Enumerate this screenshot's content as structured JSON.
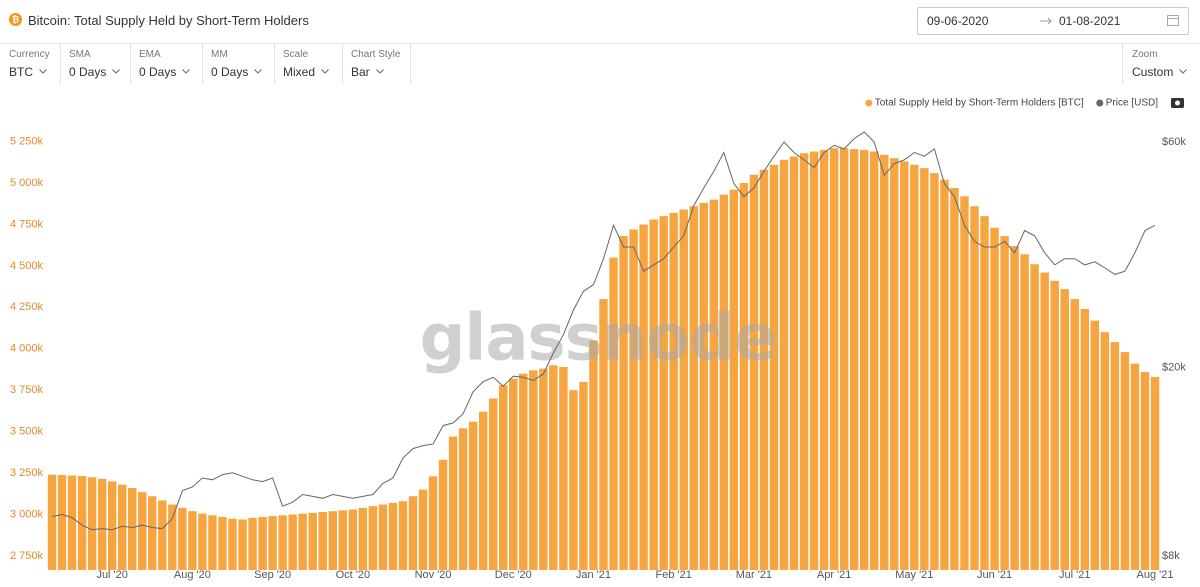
{
  "date_range": {
    "from": "09-06-2020",
    "to": "01-08-2021"
  },
  "toolbar": [
    {
      "label": "Currency",
      "value": "BTC"
    },
    {
      "label": "SMA",
      "value": "0 Days"
    },
    {
      "label": "EMA",
      "value": "0 Days"
    },
    {
      "label": "MM",
      "value": "0 Days"
    },
    {
      "label": "Scale",
      "value": "Mixed"
    },
    {
      "label": "Chart Style",
      "value": "Bar"
    }
  ],
  "zoom": {
    "label": "Zoom",
    "value": "Custom"
  },
  "chart_data": {
    "type": "bar",
    "title": "Bitcoin: Total Supply Held by Short-Term Holders",
    "watermark": "glassnode",
    "categories": [
      null,
      null,
      null,
      null,
      null,
      null,
      "Jul '20",
      null,
      null,
      null,
      null,
      null,
      null,
      null,
      "Aug '20",
      null,
      null,
      null,
      null,
      null,
      null,
      null,
      "Sep '20",
      null,
      null,
      null,
      null,
      null,
      null,
      null,
      "Oct '20",
      null,
      null,
      null,
      null,
      null,
      null,
      null,
      "Nov '20",
      null,
      null,
      null,
      null,
      null,
      null,
      null,
      "Dec '20",
      null,
      null,
      null,
      null,
      null,
      null,
      null,
      "Jan '21",
      null,
      null,
      null,
      null,
      null,
      null,
      null,
      "Feb '21",
      null,
      null,
      null,
      null,
      null,
      null,
      null,
      "Mar '21",
      null,
      null,
      null,
      null,
      null,
      null,
      null,
      "Apr '21",
      null,
      null,
      null,
      null,
      null,
      null,
      null,
      "May '21",
      null,
      null,
      null,
      null,
      null,
      null,
      null,
      "Jun '21",
      null,
      null,
      null,
      null,
      null,
      null,
      null,
      "Jul '21",
      null,
      null,
      null,
      null,
      null,
      null,
      null,
      "Aug '21"
    ],
    "series": [
      {
        "name": "Total Supply Held by Short-Term Holders [BTC]",
        "color": "#f7a541",
        "type": "bar",
        "values": [
          3240,
          3238,
          3235,
          3232,
          3225,
          3215,
          3200,
          3180,
          3160,
          3135,
          3110,
          3085,
          3060,
          3040,
          3020,
          3005,
          2995,
          2985,
          2975,
          2970,
          2980,
          2985,
          2990,
          2995,
          3000,
          3005,
          3010,
          3015,
          3020,
          3025,
          3030,
          3040,
          3050,
          3060,
          3070,
          3080,
          3110,
          3150,
          3230,
          3330,
          3470,
          3520,
          3560,
          3620,
          3700,
          3780,
          3820,
          3850,
          3870,
          3880,
          3900,
          3890,
          3750,
          3800,
          4050,
          4300,
          4550,
          4680,
          4720,
          4750,
          4780,
          4800,
          4820,
          4840,
          4860,
          4880,
          4900,
          4930,
          4960,
          5000,
          5050,
          5080,
          5110,
          5140,
          5160,
          5180,
          5190,
          5200,
          5210,
          5210,
          5205,
          5200,
          5190,
          5170,
          5150,
          5130,
          5110,
          5090,
          5060,
          5020,
          4970,
          4920,
          4860,
          4800,
          4730,
          4680,
          4620,
          4570,
          4510,
          4460,
          4410,
          4360,
          4300,
          4240,
          4170,
          4100,
          4040,
          3980,
          3910,
          3860,
          3830
        ]
      },
      {
        "name": "Price [USD]",
        "color": "#666666",
        "type": "line",
        "axis": "y2",
        "values": [
          9700,
          9800,
          9650,
          9300,
          9100,
          9150,
          9100,
          9250,
          9200,
          9300,
          9200,
          9150,
          9600,
          11000,
          11200,
          11700,
          11600,
          11900,
          12000,
          11800,
          11600,
          11500,
          11700,
          10200,
          10400,
          10800,
          10700,
          10600,
          10800,
          10700,
          10600,
          10700,
          10800,
          11400,
          11700,
          12900,
          13500,
          13700,
          13800,
          15100,
          15300,
          16000,
          17800,
          18700,
          19100,
          18300,
          19200,
          19100,
          18800,
          19400,
          21500,
          23500,
          26500,
          29000,
          30000,
          34000,
          40000,
          36000,
          36000,
          32000,
          33000,
          34000,
          36000,
          38000,
          44000,
          48000,
          52000,
          57000,
          49000,
          46000,
          48000,
          52000,
          56000,
          60000,
          57000,
          55000,
          53000,
          57000,
          59000,
          58000,
          61000,
          63000,
          60000,
          51000,
          54000,
          55000,
          57000,
          56000,
          58000,
          49000,
          46000,
          40000,
          37000,
          36000,
          36000,
          37000,
          35000,
          39000,
          38000,
          35000,
          33000,
          34000,
          34000,
          33000,
          33500,
          32500,
          31500,
          32000,
          35000,
          39000,
          40000
        ]
      }
    ],
    "ylim": [
      2665,
      5320
    ],
    "yticks": [
      {
        "value": 2750,
        "label": "2 750k"
      },
      {
        "value": 3000,
        "label": "3 000k"
      },
      {
        "value": 3250,
        "label": "3 250k"
      },
      {
        "value": 3500,
        "label": "3 500k"
      },
      {
        "value": 3750,
        "label": "3 750k"
      },
      {
        "value": 4000,
        "label": "4 000k"
      },
      {
        "value": 4250,
        "label": "4 250k"
      },
      {
        "value": 4500,
        "label": "4 500k"
      },
      {
        "value": 4750,
        "label": "4 750k"
      },
      {
        "value": 5000,
        "label": "5 000k"
      },
      {
        "value": 5250,
        "label": "5 250k"
      }
    ],
    "y2lim": [
      7480,
      63600
    ],
    "y2scale": "log",
    "y2ticks": [
      {
        "value": 8000,
        "label": "$8k"
      },
      {
        "value": 20000,
        "label": "$20k"
      },
      {
        "value": 60000,
        "label": "$60k"
      }
    ],
    "legend": "top-right"
  }
}
